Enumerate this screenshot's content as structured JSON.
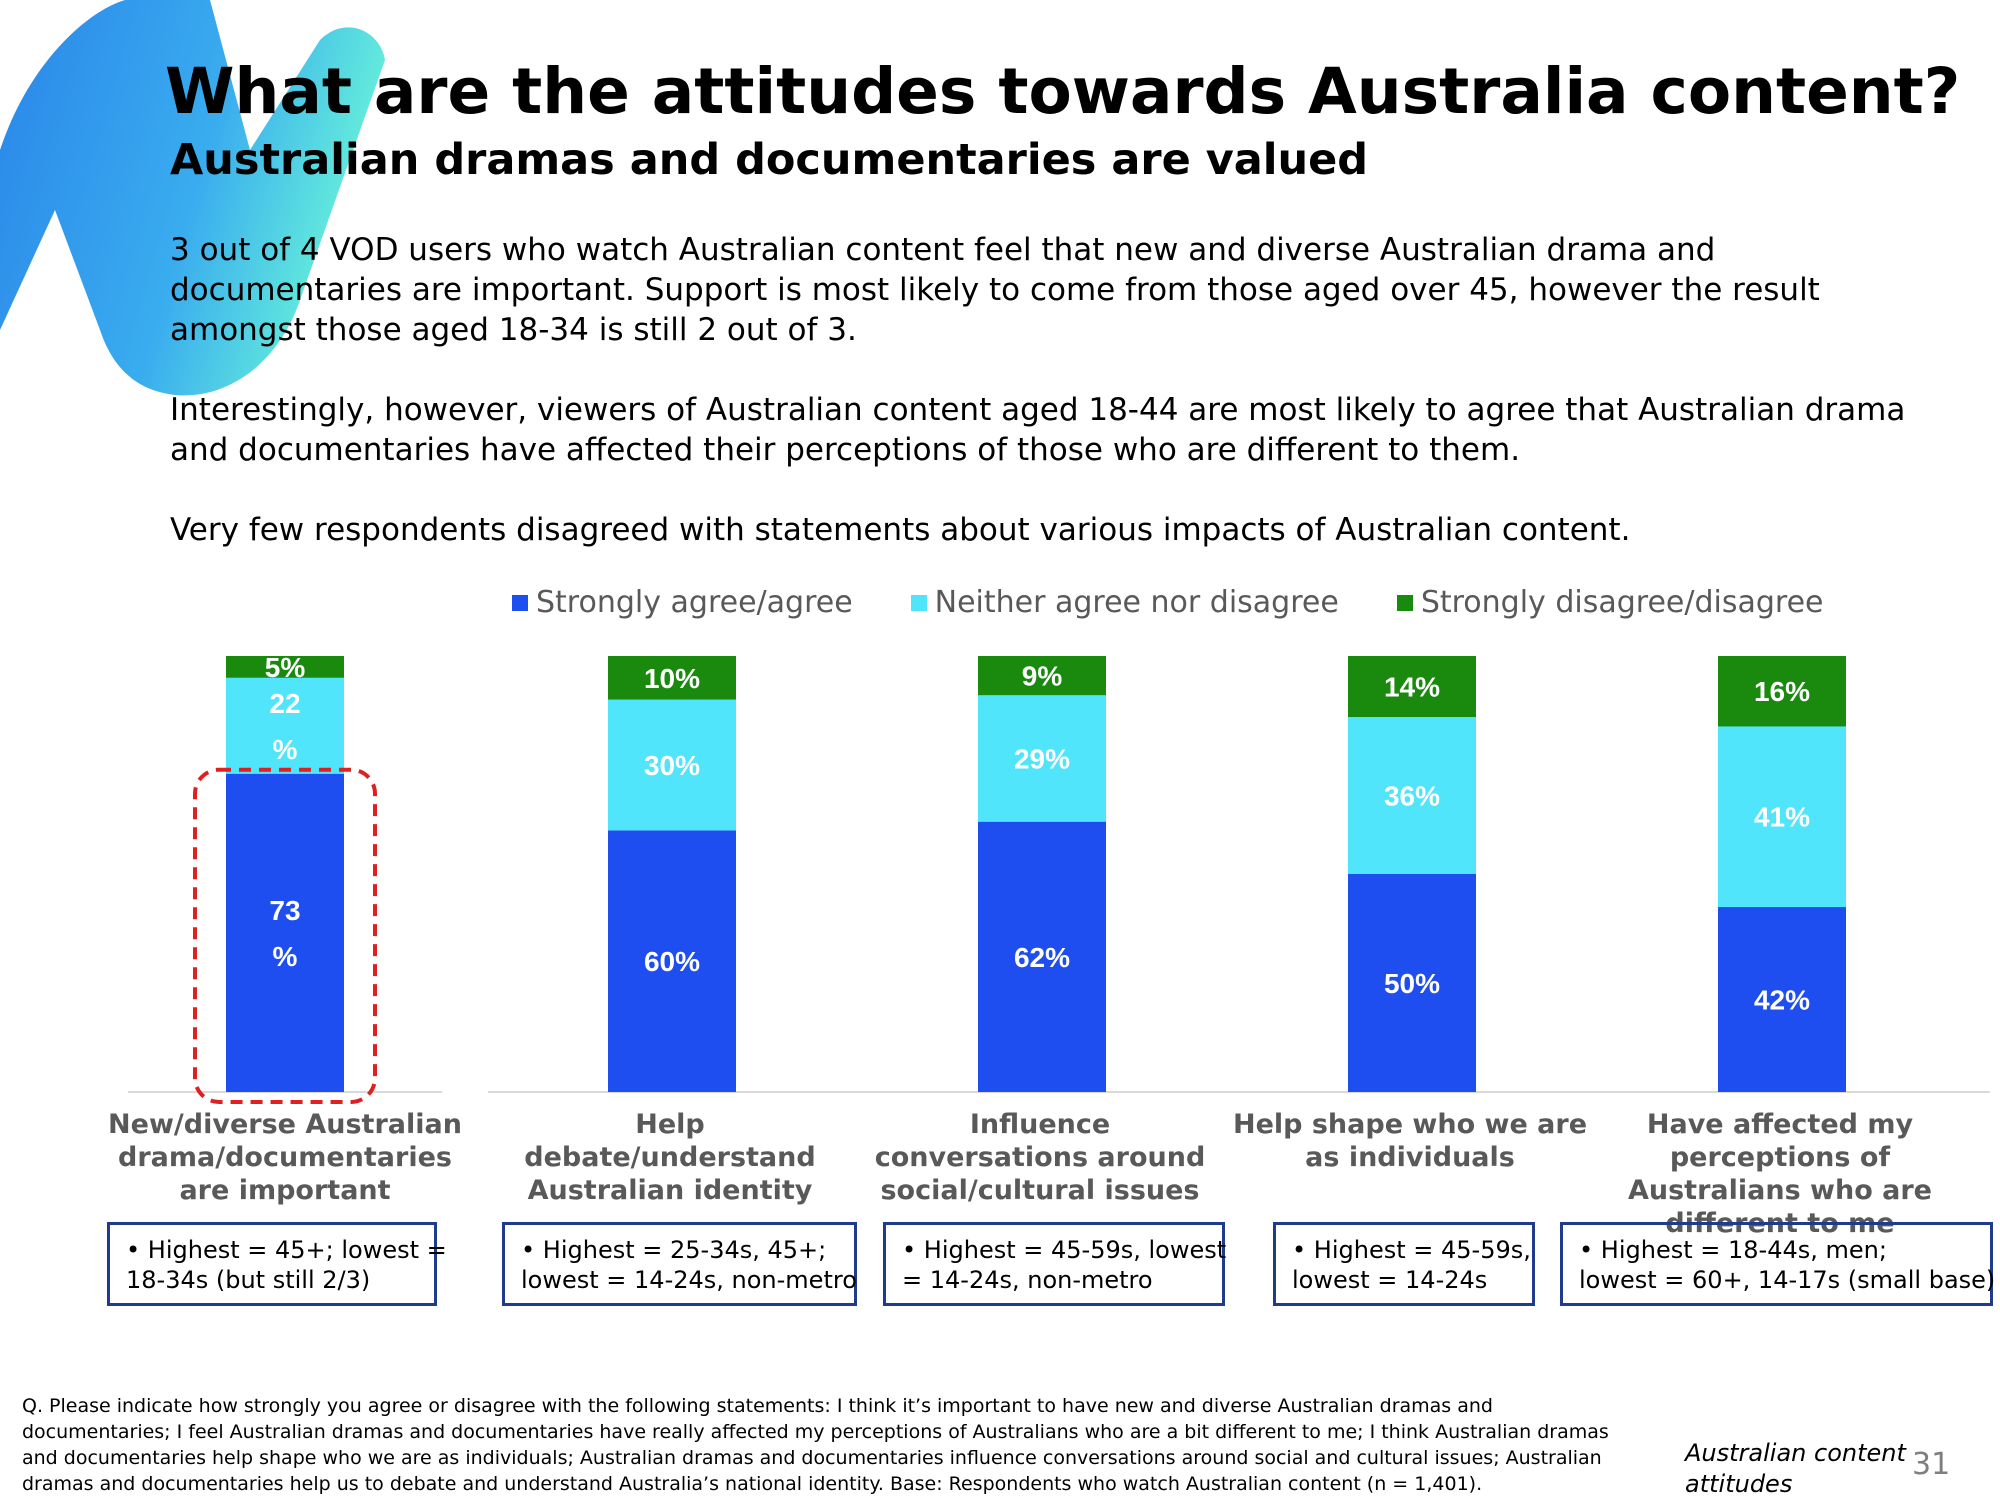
{
  "header": {
    "title": "What are the attitudes towards Australia content?",
    "subtitle": "Australian dramas and documentaries are valued"
  },
  "body": {
    "paragraph_1": "3 out of 4 VOD users who watch Australian content feel that new and diverse Australian drama and documentaries are important. Support is most likely to come from those aged over 45, however the result amongst those aged 18-34 is still 2 out of 3.",
    "paragraph_2": "Interestingly, however, viewers of Australian content aged 18-44 are most likely to agree that Australian drama and documentaries have affected their perceptions of those who are different to them.",
    "paragraph_3": "Very few respondents disagreed with statements about various impacts of Australian content."
  },
  "colors": {
    "agree": "#1f4ef0",
    "neither": "#50e5fb",
    "disagree": "#1a8a0f",
    "highlight": "#e02020",
    "note_border": "#1f3b8c"
  },
  "chart_data": {
    "type": "bar",
    "stacked": true,
    "legend_position": "top",
    "categories": [
      "New/diverse Australian drama/documentaries are important",
      "Help debate/understand Australian identity",
      "Influence conversations around social/cultural issues",
      "Help shape who we are as individuals",
      "Have affected my perceptions of Australians who are different to me"
    ],
    "series": [
      {
        "name": "Strongly agree/agree",
        "values": [
          73,
          60,
          62,
          50,
          42
        ],
        "labels": [
          "73\n%",
          "60%",
          "62%",
          "50%",
          "42%"
        ]
      },
      {
        "name": "Neither agree nor disagree",
        "values": [
          22,
          30,
          29,
          36,
          41
        ],
        "labels": [
          "22\n%",
          "30%",
          "29%",
          "36%",
          "41%"
        ]
      },
      {
        "name": "Strongly disagree/disagree",
        "values": [
          5,
          10,
          9,
          14,
          16
        ],
        "labels": [
          "5%",
          "10%",
          "9%",
          "14%",
          "16%"
        ]
      }
    ],
    "highlighted_category": 0
  },
  "notes": [
    {
      "line1": "• Highest = 45+; lowest =",
      "line2": "18-34s (but still 2/3)"
    },
    {
      "line1": "• Highest = 25-34s, 45+;",
      "line2": "lowest = 14-24s, non-metro"
    },
    {
      "line1": "• Highest = 45-59s, lowest",
      "line2": "= 14-24s, non-metro"
    },
    {
      "line1": "• Highest = 45-59s,",
      "line2": "lowest = 14-24s"
    },
    {
      "line1": "• Highest = 18-44s, men;",
      "line2": "lowest = 60+, 14-17s (small base)"
    }
  ],
  "footer": {
    "question": "Q. Please indicate how strongly you agree or disagree with the following statements: I think it’s important to have new and diverse Australian dramas and documentaries; I feel Australian dramas and documentaries have really affected my perceptions of Australians who are a bit different to me; I think Australian dramas and documentaries help shape who we are as individuals; Australian dramas and documentaries influence conversations around social and cultural issues; Australian dramas and documentaries help us to debate and understand Australia’s national identity. Base: Respondents who watch Australian content (n = 1,401).",
    "section_label_1": "Australian content",
    "section_label_2": "attitudes",
    "page_number": "31"
  }
}
